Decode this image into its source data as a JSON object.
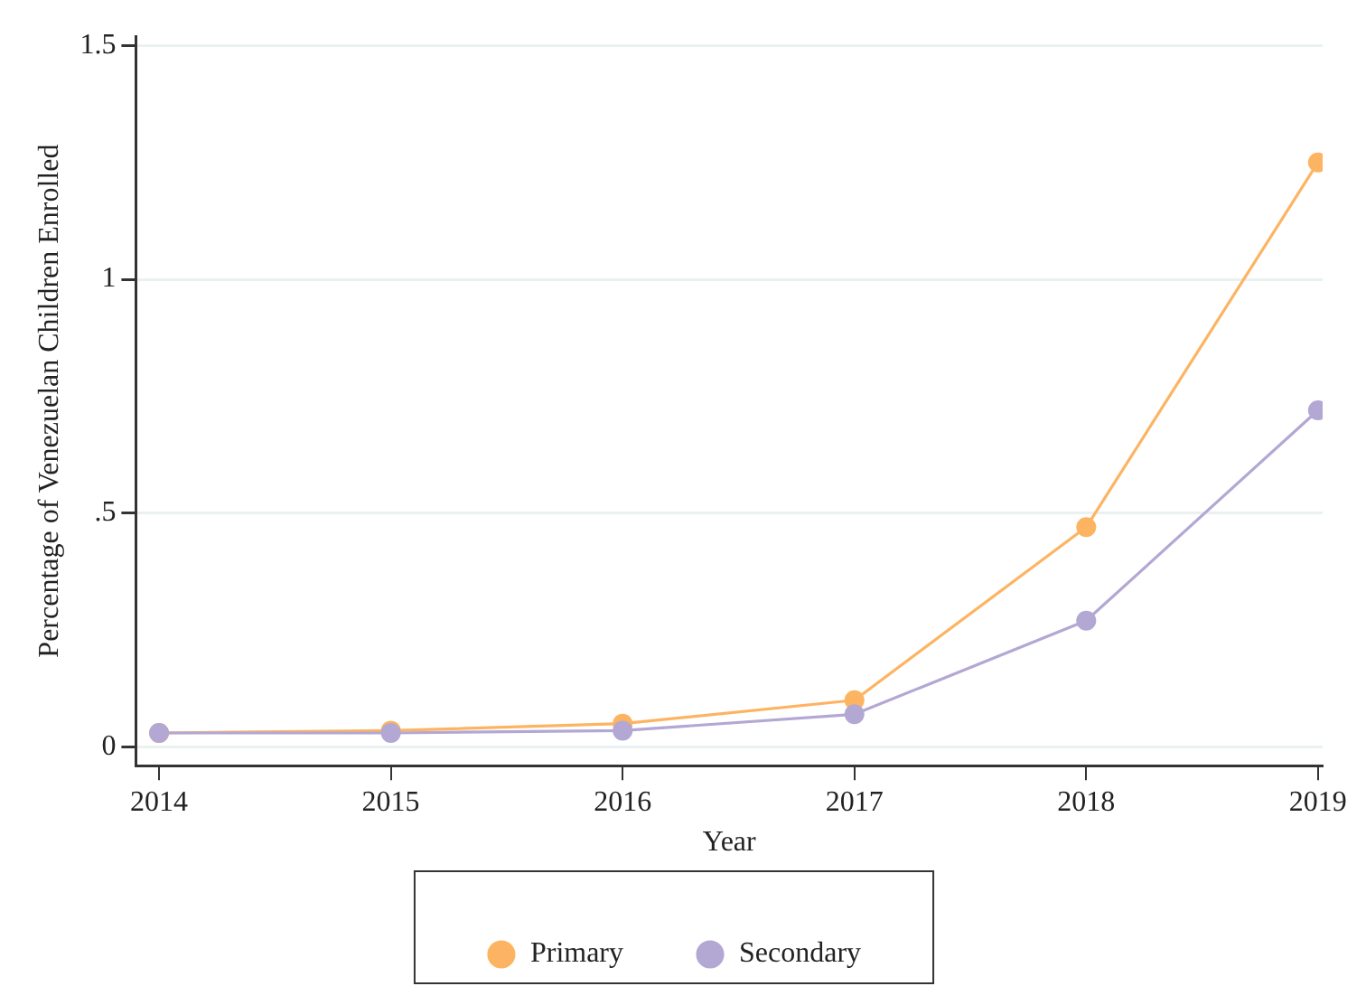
{
  "chart_data": {
    "type": "line",
    "xlabel": "Year",
    "ylabel": "Percentage of Venezuelan Children Enrolled",
    "x": [
      2014,
      2015,
      2016,
      2017,
      2018,
      2019
    ],
    "series": [
      {
        "name": "Primary",
        "color": "#fdb462",
        "values": [
          0.03,
          0.035,
          0.05,
          0.1,
          0.47,
          1.25
        ]
      },
      {
        "name": "Secondary",
        "color": "#b3a7d4",
        "values": [
          0.03,
          0.03,
          0.035,
          0.07,
          0.27,
          0.72
        ]
      }
    ],
    "xlim": [
      2013.9,
      2019.02
    ],
    "xticks": [
      2014,
      2015,
      2016,
      2017,
      2018,
      2019
    ],
    "ylim": [
      -0.04,
      1.52
    ],
    "yticks": [
      0,
      {
        "value": 0.5,
        "label": ".5"
      },
      1,
      1.5
    ],
    "grid": "y",
    "legend": "bottom",
    "marker": "circle",
    "line_style": "solid"
  }
}
